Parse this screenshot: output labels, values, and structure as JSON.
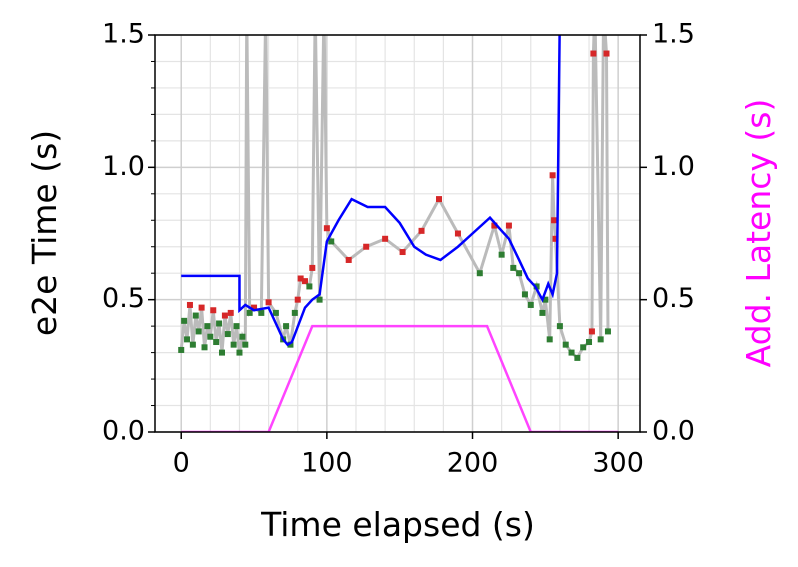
{
  "chart_data": {
    "type": "line",
    "xlabel": "Time elapsed (s)",
    "ylabel": "e2e Time (s)",
    "y2label": "Add. Latency (s)",
    "y2label_color": "#ff00ff",
    "xlim": [
      -18,
      315
    ],
    "ylim": [
      0,
      1.5
    ],
    "y2lim": [
      0,
      1.5
    ],
    "xticks": [
      0,
      100,
      200,
      300
    ],
    "yticks": [
      {
        "value": 0,
        "label": "0.0"
      },
      {
        "value": 0.5,
        "label": "0.5"
      },
      {
        "value": 1,
        "label": "1.0"
      },
      {
        "value": 1.5,
        "label": "1.5"
      }
    ],
    "y2ticks": [
      {
        "value": 0,
        "label": "0.0"
      },
      {
        "value": 0.5,
        "label": "0.5"
      },
      {
        "value": 1,
        "label": "1.0"
      },
      {
        "value": 1.5,
        "label": "1.5"
      }
    ],
    "xminorticks": [
      -20,
      20,
      40,
      60,
      80,
      120,
      140,
      160,
      180,
      220,
      240,
      260,
      280
    ],
    "yminorticks": [
      0.1,
      0.2,
      0.3,
      0.4,
      0.6,
      0.7,
      0.8,
      0.9,
      1.1,
      1.2,
      1.3,
      1.4
    ],
    "grid": true,
    "series": [
      {
        "color": "#bbbbbb",
        "markers": true,
        "x": [
          0,
          2,
          4,
          6,
          8,
          10,
          12,
          14,
          16,
          18,
          20,
          22,
          24,
          26,
          28,
          30,
          32,
          34,
          36,
          38,
          40,
          42,
          44,
          45,
          47,
          50,
          55,
          58,
          60,
          65,
          70,
          72,
          75,
          78,
          80,
          82,
          85,
          88,
          90,
          92,
          95,
          98,
          100,
          103,
          115,
          127,
          140,
          152,
          165,
          177,
          190,
          205,
          215,
          220,
          225,
          228,
          232,
          236,
          240,
          244,
          248,
          250,
          253,
          255,
          256,
          257,
          260,
          264,
          268,
          272,
          276,
          280,
          282,
          283,
          284,
          288,
          290,
          292,
          293
        ],
        "values": [
          0.31,
          0.42,
          0.35,
          0.48,
          0.33,
          0.44,
          0.38,
          0.47,
          0.32,
          0.4,
          0.36,
          0.46,
          0.34,
          0.41,
          0.3,
          0.44,
          0.37,
          0.45,
          0.33,
          0.4,
          0.3,
          0.36,
          0.33,
          1.6,
          0.45,
          0.47,
          0.45,
          1.6,
          0.49,
          0.45,
          0.35,
          0.4,
          0.33,
          0.45,
          0.5,
          0.58,
          0.57,
          0.55,
          0.62,
          1.6,
          0.5,
          1.6,
          0.77,
          0.72,
          0.65,
          0.7,
          0.73,
          0.68,
          0.76,
          0.88,
          0.75,
          0.6,
          0.78,
          0.67,
          0.78,
          0.62,
          0.6,
          0.52,
          0.48,
          0.55,
          0.45,
          0.5,
          0.35,
          0.97,
          0.8,
          0.73,
          0.4,
          0.33,
          0.3,
          0.28,
          0.32,
          0.34,
          0.38,
          1.43,
          1.6,
          0.35,
          1.6,
          1.43,
          0.38
        ],
        "marker_colors": [
          "#2e7d32",
          "#2e7d32",
          "#2e7d32",
          "#d62728",
          "#2e7d32",
          "#2e7d32",
          "#2e7d32",
          "#d62728",
          "#2e7d32",
          "#2e7d32",
          "#2e7d32",
          "#d62728",
          "#2e7d32",
          "#2e7d32",
          "#2e7d32",
          "#d62728",
          "#2e7d32",
          "#d62728",
          "#2e7d32",
          "#2e7d32",
          "#2e7d32",
          "#2e7d32",
          "#2e7d32",
          "#d62728",
          "#2e7d32",
          "#d62728",
          "#2e7d32",
          "#d62728",
          "#d62728",
          "#2e7d32",
          "#2e7d32",
          "#2e7d32",
          "#2e7d32",
          "#2e7d32",
          "#d62728",
          "#d62728",
          "#d62728",
          "#2e7d32",
          "#d62728",
          "#d62728",
          "#2e7d32",
          "#d62728",
          "#d62728",
          "#2e7d32",
          "#d62728",
          "#d62728",
          "#d62728",
          "#d62728",
          "#d62728",
          "#d62728",
          "#d62728",
          "#2e7d32",
          "#d62728",
          "#2e7d32",
          "#d62728",
          "#2e7d32",
          "#2e7d32",
          "#2e7d32",
          "#2e7d32",
          "#2e7d32",
          "#2e7d32",
          "#2e7d32",
          "#2e7d32",
          "#d62728",
          "#d62728",
          "#d62728",
          "#2e7d32",
          "#2e7d32",
          "#2e7d32",
          "#2e7d32",
          "#2e7d32",
          "#2e7d32",
          "#d62728",
          "#d62728",
          "#d62728",
          "#2e7d32",
          "#d62728",
          "#d62728",
          "#2e7d32"
        ]
      },
      {
        "color": "#0000ff",
        "x": [
          0,
          40,
          40,
          44,
          50,
          60,
          70,
          73,
          76,
          85,
          90,
          95,
          100,
          108,
          117,
          128,
          140,
          150,
          160,
          168,
          178,
          190,
          200,
          212,
          220,
          225,
          232,
          238,
          243,
          248,
          252,
          255,
          258,
          260
        ],
        "values": [
          0.59,
          0.59,
          0.46,
          0.48,
          0.46,
          0.47,
          0.35,
          0.33,
          0.34,
          0.47,
          0.5,
          0.52,
          0.72,
          0.8,
          0.88,
          0.85,
          0.85,
          0.79,
          0.7,
          0.67,
          0.65,
          0.7,
          0.75,
          0.81,
          0.76,
          0.73,
          0.65,
          0.58,
          0.55,
          0.5,
          0.56,
          0.52,
          0.6,
          1.6
        ]
      },
      {
        "color": "#ff44ff",
        "axis": "y2",
        "x": [
          0,
          60,
          90,
          210,
          240,
          300
        ],
        "values": [
          0,
          0,
          0.4,
          0.4,
          0,
          0
        ]
      }
    ]
  }
}
